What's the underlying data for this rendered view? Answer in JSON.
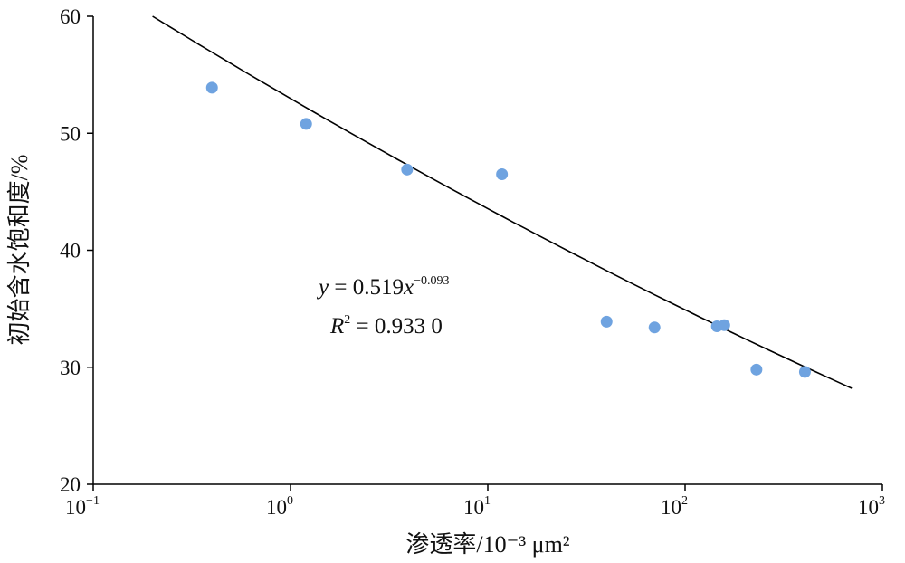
{
  "chart_data": {
    "type": "scatter",
    "xlabel": "渗透率/10⁻³ μm²",
    "ylabel": "初始含水饱和度/%",
    "x_scale": "log",
    "xlim": [
      0.1,
      1000
    ],
    "ylim": [
      20,
      60
    ],
    "x_ticks": [
      {
        "value": 0.1,
        "base": "10",
        "exp": "−1"
      },
      {
        "value": 1,
        "base": "10",
        "exp": "0"
      },
      {
        "value": 10,
        "base": "10",
        "exp": "1"
      },
      {
        "value": 100,
        "base": "10",
        "exp": "2"
      },
      {
        "value": 1000,
        "base": "10",
        "exp": "3"
      }
    ],
    "y_ticks": [
      "20",
      "30",
      "40",
      "50",
      "60"
    ],
    "grid": false,
    "marker_color": "#6fa3e0",
    "series": [
      {
        "points": [
          {
            "x": 0.4,
            "y": 53.9
          },
          {
            "x": 1.2,
            "y": 50.8
          },
          {
            "x": 3.9,
            "y": 46.9
          },
          {
            "x": 11.8,
            "y": 46.5
          },
          {
            "x": 40,
            "y": 33.9
          },
          {
            "x": 70,
            "y": 33.4
          },
          {
            "x": 145,
            "y": 33.5
          },
          {
            "x": 158,
            "y": 33.6
          },
          {
            "x": 230,
            "y": 29.8
          },
          {
            "x": 405,
            "y": 29.6
          }
        ]
      }
    ],
    "trendline": {
      "type": "power",
      "a": 0.519,
      "b": -0.093,
      "x_range": [
        0.2,
        700
      ],
      "y_range": [
        60,
        28.2
      ],
      "color": "#000000"
    },
    "annotation": {
      "eq_y": "y",
      "eq_middle": " = 0.519",
      "eq_x": "x",
      "eq_exp": "−0.093",
      "r2_r": "R",
      "r2_sup": "2",
      "r2_value": " = 0.933 0"
    }
  }
}
